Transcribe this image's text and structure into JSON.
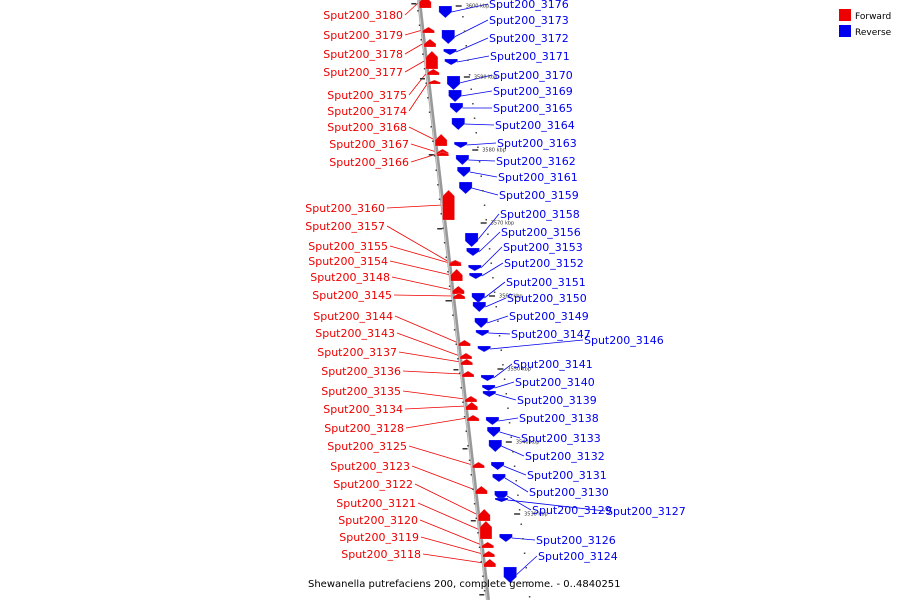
{
  "caption": "Shewanella putrefaciens 200, complete genome. - 0..4840251",
  "legend": {
    "items": [
      {
        "label": "Forward",
        "color": "#ee0000"
      },
      {
        "label": "Reverse",
        "color": "#0000ee"
      }
    ]
  },
  "colors": {
    "forward": "#ee0000",
    "reverse": "#0000ee",
    "backbone": "#999999"
  },
  "ticks": [
    "3600 kbp",
    "3590 kbp",
    "3580 kbp",
    "3570 kbp",
    "3560 kbp",
    "3550 kbp",
    "3540 kbp",
    "3530 kbp"
  ],
  "forward_genes": [
    "Sput200_3180",
    "Sput200_3179",
    "Sput200_3178",
    "Sput200_3177",
    "Sput200_3175",
    "Sput200_3174",
    "Sput200_3168",
    "Sput200_3167",
    "Sput200_3166",
    "Sput200_3160",
    "Sput200_3157",
    "Sput200_3155",
    "Sput200_3154",
    "Sput200_3148",
    "Sput200_3145",
    "Sput200_3144",
    "Sput200_3143",
    "Sput200_3137",
    "Sput200_3136",
    "Sput200_3135",
    "Sput200_3134",
    "Sput200_3128",
    "Sput200_3125",
    "Sput200_3123",
    "Sput200_3122",
    "Sput200_3121",
    "Sput200_3120",
    "Sput200_3119",
    "Sput200_3118"
  ],
  "reverse_genes": [
    "Sput200_3176",
    "Sput200_3173",
    "Sput200_3172",
    "Sput200_3171",
    "Sput200_3170",
    "Sput200_3169",
    "Sput200_3165",
    "Sput200_3164",
    "Sput200_3163",
    "Sput200_3162",
    "Sput200_3161",
    "Sput200_3159",
    "Sput200_3158",
    "Sput200_3156",
    "Sput200_3153",
    "Sput200_3152",
    "Sput200_3151",
    "Sput200_3150",
    "Sput200_3149",
    "Sput200_3147",
    "Sput200_3146",
    "Sput200_3141",
    "Sput200_3140",
    "Sput200_3139",
    "Sput200_3138",
    "Sput200_3133",
    "Sput200_3132",
    "Sput200_3131",
    "Sput200_3130",
    "Sput200_3129",
    "Sput200_3127",
    "Sput200_3126",
    "Sput200_3124"
  ]
}
